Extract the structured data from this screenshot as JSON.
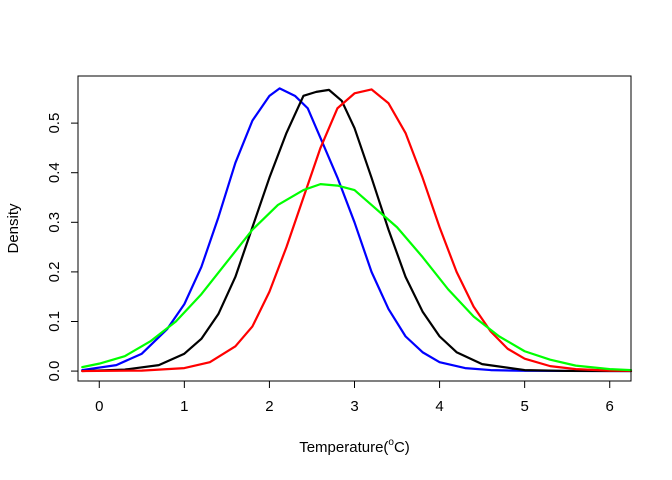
{
  "chart_data": {
    "type": "line",
    "title": "",
    "xlabel": "Temperature(",
    "xlabel_superscript": "o",
    "xlabel_suffix": "C)",
    "ylabel": "Density",
    "xlim": [
      -0.25,
      6.25
    ],
    "ylim": [
      -0.02,
      0.595
    ],
    "x_ticks": [
      0,
      1,
      2,
      3,
      4,
      5,
      6
    ],
    "x_tick_labels": [
      "0",
      "1",
      "2",
      "3",
      "4",
      "5",
      "6"
    ],
    "y_ticks": [
      0.0,
      0.1,
      0.2,
      0.3,
      0.4,
      0.5
    ],
    "y_tick_labels": [
      "0.0",
      "0.1",
      "0.2",
      "0.3",
      "0.4",
      "0.5"
    ],
    "grid": false,
    "legend": "none",
    "series": [
      {
        "name": "blue",
        "color": "#0000ff",
        "x": [
          -0.2,
          0.2,
          0.5,
          0.8,
          1.0,
          1.2,
          1.4,
          1.6,
          1.8,
          2.0,
          2.12,
          2.3,
          2.45,
          2.6,
          2.8,
          3.0,
          3.2,
          3.4,
          3.6,
          3.8,
          4.0,
          4.3,
          4.6,
          5.0,
          6.0,
          6.25
        ],
        "y": [
          0.002,
          0.012,
          0.035,
          0.085,
          0.135,
          0.21,
          0.31,
          0.42,
          0.505,
          0.555,
          0.57,
          0.555,
          0.53,
          0.47,
          0.39,
          0.3,
          0.2,
          0.125,
          0.07,
          0.038,
          0.018,
          0.006,
          0.002,
          0.0005,
          0.0,
          0.0
        ]
      },
      {
        "name": "black",
        "color": "#000000",
        "x": [
          -0.2,
          0.3,
          0.7,
          1.0,
          1.2,
          1.4,
          1.6,
          1.8,
          2.0,
          2.2,
          2.4,
          2.55,
          2.7,
          2.85,
          3.0,
          3.2,
          3.4,
          3.6,
          3.8,
          4.0,
          4.2,
          4.5,
          5.0,
          5.5,
          6.25
        ],
        "y": [
          0.0,
          0.003,
          0.012,
          0.035,
          0.065,
          0.115,
          0.19,
          0.29,
          0.39,
          0.48,
          0.555,
          0.563,
          0.567,
          0.545,
          0.49,
          0.39,
          0.285,
          0.19,
          0.12,
          0.07,
          0.038,
          0.014,
          0.002,
          0.0003,
          0.0
        ]
      },
      {
        "name": "red",
        "color": "#ff0000",
        "x": [
          -0.2,
          0.5,
          1.0,
          1.3,
          1.6,
          1.8,
          2.0,
          2.2,
          2.4,
          2.6,
          2.8,
          3.0,
          3.2,
          3.4,
          3.6,
          3.8,
          4.0,
          4.2,
          4.4,
          4.6,
          4.8,
          5.0,
          5.3,
          5.6,
          6.0,
          6.25
        ],
        "y": [
          0.0,
          0.001,
          0.006,
          0.018,
          0.05,
          0.09,
          0.16,
          0.25,
          0.35,
          0.45,
          0.53,
          0.56,
          0.568,
          0.54,
          0.48,
          0.39,
          0.29,
          0.2,
          0.13,
          0.08,
          0.045,
          0.025,
          0.01,
          0.004,
          0.001,
          0.0005
        ]
      },
      {
        "name": "green",
        "color": "#00ff00",
        "x": [
          -0.2,
          0.0,
          0.3,
          0.6,
          0.9,
          1.2,
          1.5,
          1.8,
          2.1,
          2.4,
          2.6,
          2.8,
          3.0,
          3.2,
          3.5,
          3.8,
          4.1,
          4.4,
          4.7,
          5.0,
          5.3,
          5.6,
          6.0,
          6.25
        ],
        "y": [
          0.008,
          0.015,
          0.03,
          0.06,
          0.1,
          0.155,
          0.22,
          0.285,
          0.335,
          0.365,
          0.377,
          0.374,
          0.365,
          0.335,
          0.29,
          0.23,
          0.165,
          0.11,
          0.07,
          0.04,
          0.023,
          0.011,
          0.004,
          0.002
        ]
      }
    ]
  }
}
